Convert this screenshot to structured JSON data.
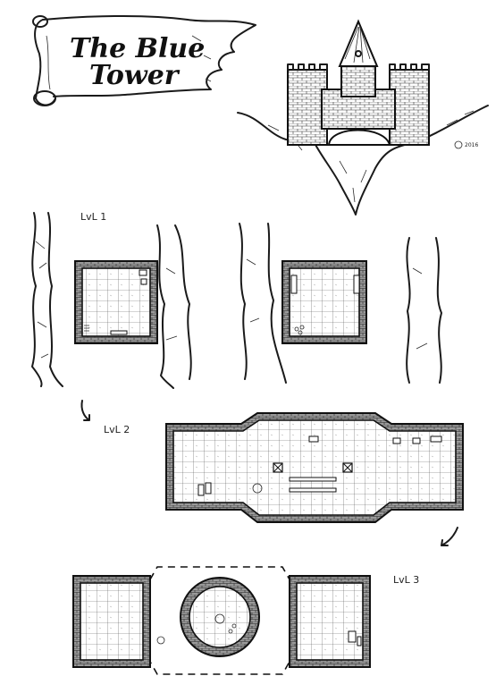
{
  "title": {
    "line1": "The Blue",
    "line2": "Tower"
  },
  "signature": "2016",
  "levels": {
    "l1": "LvL 1",
    "l2": "LvL 2",
    "l3": "LvL 3"
  },
  "icons": {
    "scroll": "scroll-banner-icon",
    "castle": "castle-on-floating-rock-icon",
    "arrow": "curved-arrow-icon"
  },
  "colors": {
    "ink": "#1a1a1a",
    "paper": "#ffffff",
    "wall_fill": "#8a8a8a"
  }
}
